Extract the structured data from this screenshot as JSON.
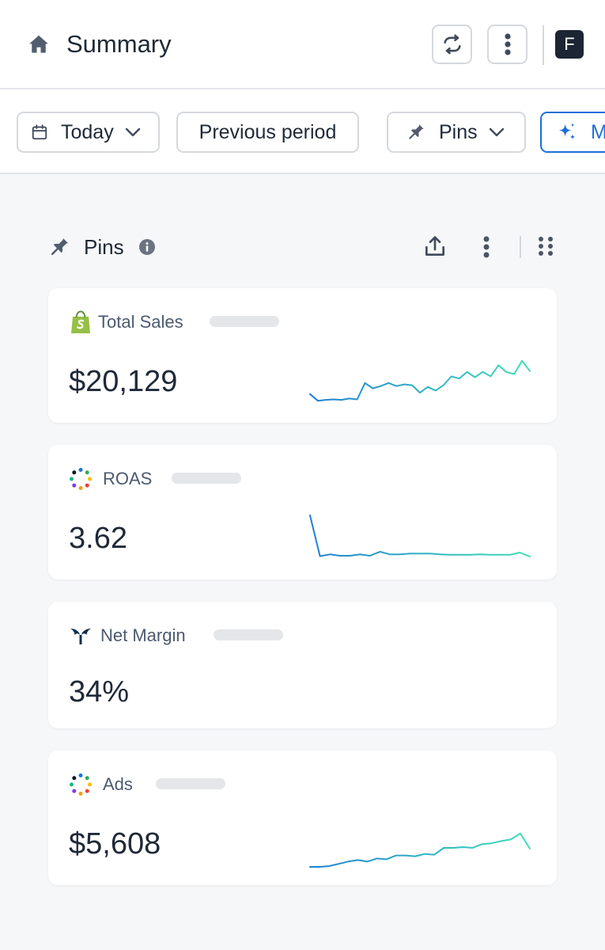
{
  "header": {
    "title": "Summary",
    "avatar_letter": "F"
  },
  "filters": {
    "date_range": "Today",
    "compare": "Previous period",
    "pins": "Pins",
    "magic_partial": "M"
  },
  "section": {
    "title": "Pins"
  },
  "cards": [
    {
      "name": "Total Sales",
      "value": "$20,129",
      "source_icon": "shopify-icon",
      "trend": [
        0.2,
        0.05,
        0.07,
        0.08,
        0.07,
        0.1,
        0.08,
        0.45,
        0.33,
        0.38,
        0.45,
        0.38,
        0.42,
        0.4,
        0.23,
        0.36,
        0.28,
        0.4,
        0.6,
        0.55,
        0.7,
        0.58,
        0.7,
        0.6,
        0.85,
        0.7,
        0.65,
        0.95,
        0.72
      ]
    },
    {
      "name": "ROAS",
      "value": "3.62",
      "source_icon": "triple-whale-dots-icon",
      "trend": [
        1.0,
        0.08,
        0.12,
        0.09,
        0.09,
        0.12,
        0.09,
        0.18,
        0.12,
        0.12,
        0.14,
        0.14,
        0.14,
        0.12,
        0.11,
        0.11,
        0.11,
        0.12,
        0.11,
        0.11,
        0.11,
        0.16,
        0.07
      ]
    },
    {
      "name": "Net Margin",
      "value": "34%",
      "source_icon": "whale-tail-icon"
    },
    {
      "name": "Ads",
      "value": "$5,608",
      "source_icon": "triple-whale-dots-icon",
      "trend": [
        0.0,
        0.0,
        0.02,
        0.08,
        0.14,
        0.18,
        0.14,
        0.22,
        0.2,
        0.3,
        0.3,
        0.28,
        0.34,
        0.32,
        0.5,
        0.5,
        0.52,
        0.5,
        0.6,
        0.62,
        0.68,
        0.72,
        0.88,
        0.48
      ]
    }
  ],
  "colors": {
    "spark_start": "#1f7fd1",
    "spark_end": "#3fe0b8",
    "accent": "#1e6fd9",
    "shopify_green": "#95bf47"
  }
}
